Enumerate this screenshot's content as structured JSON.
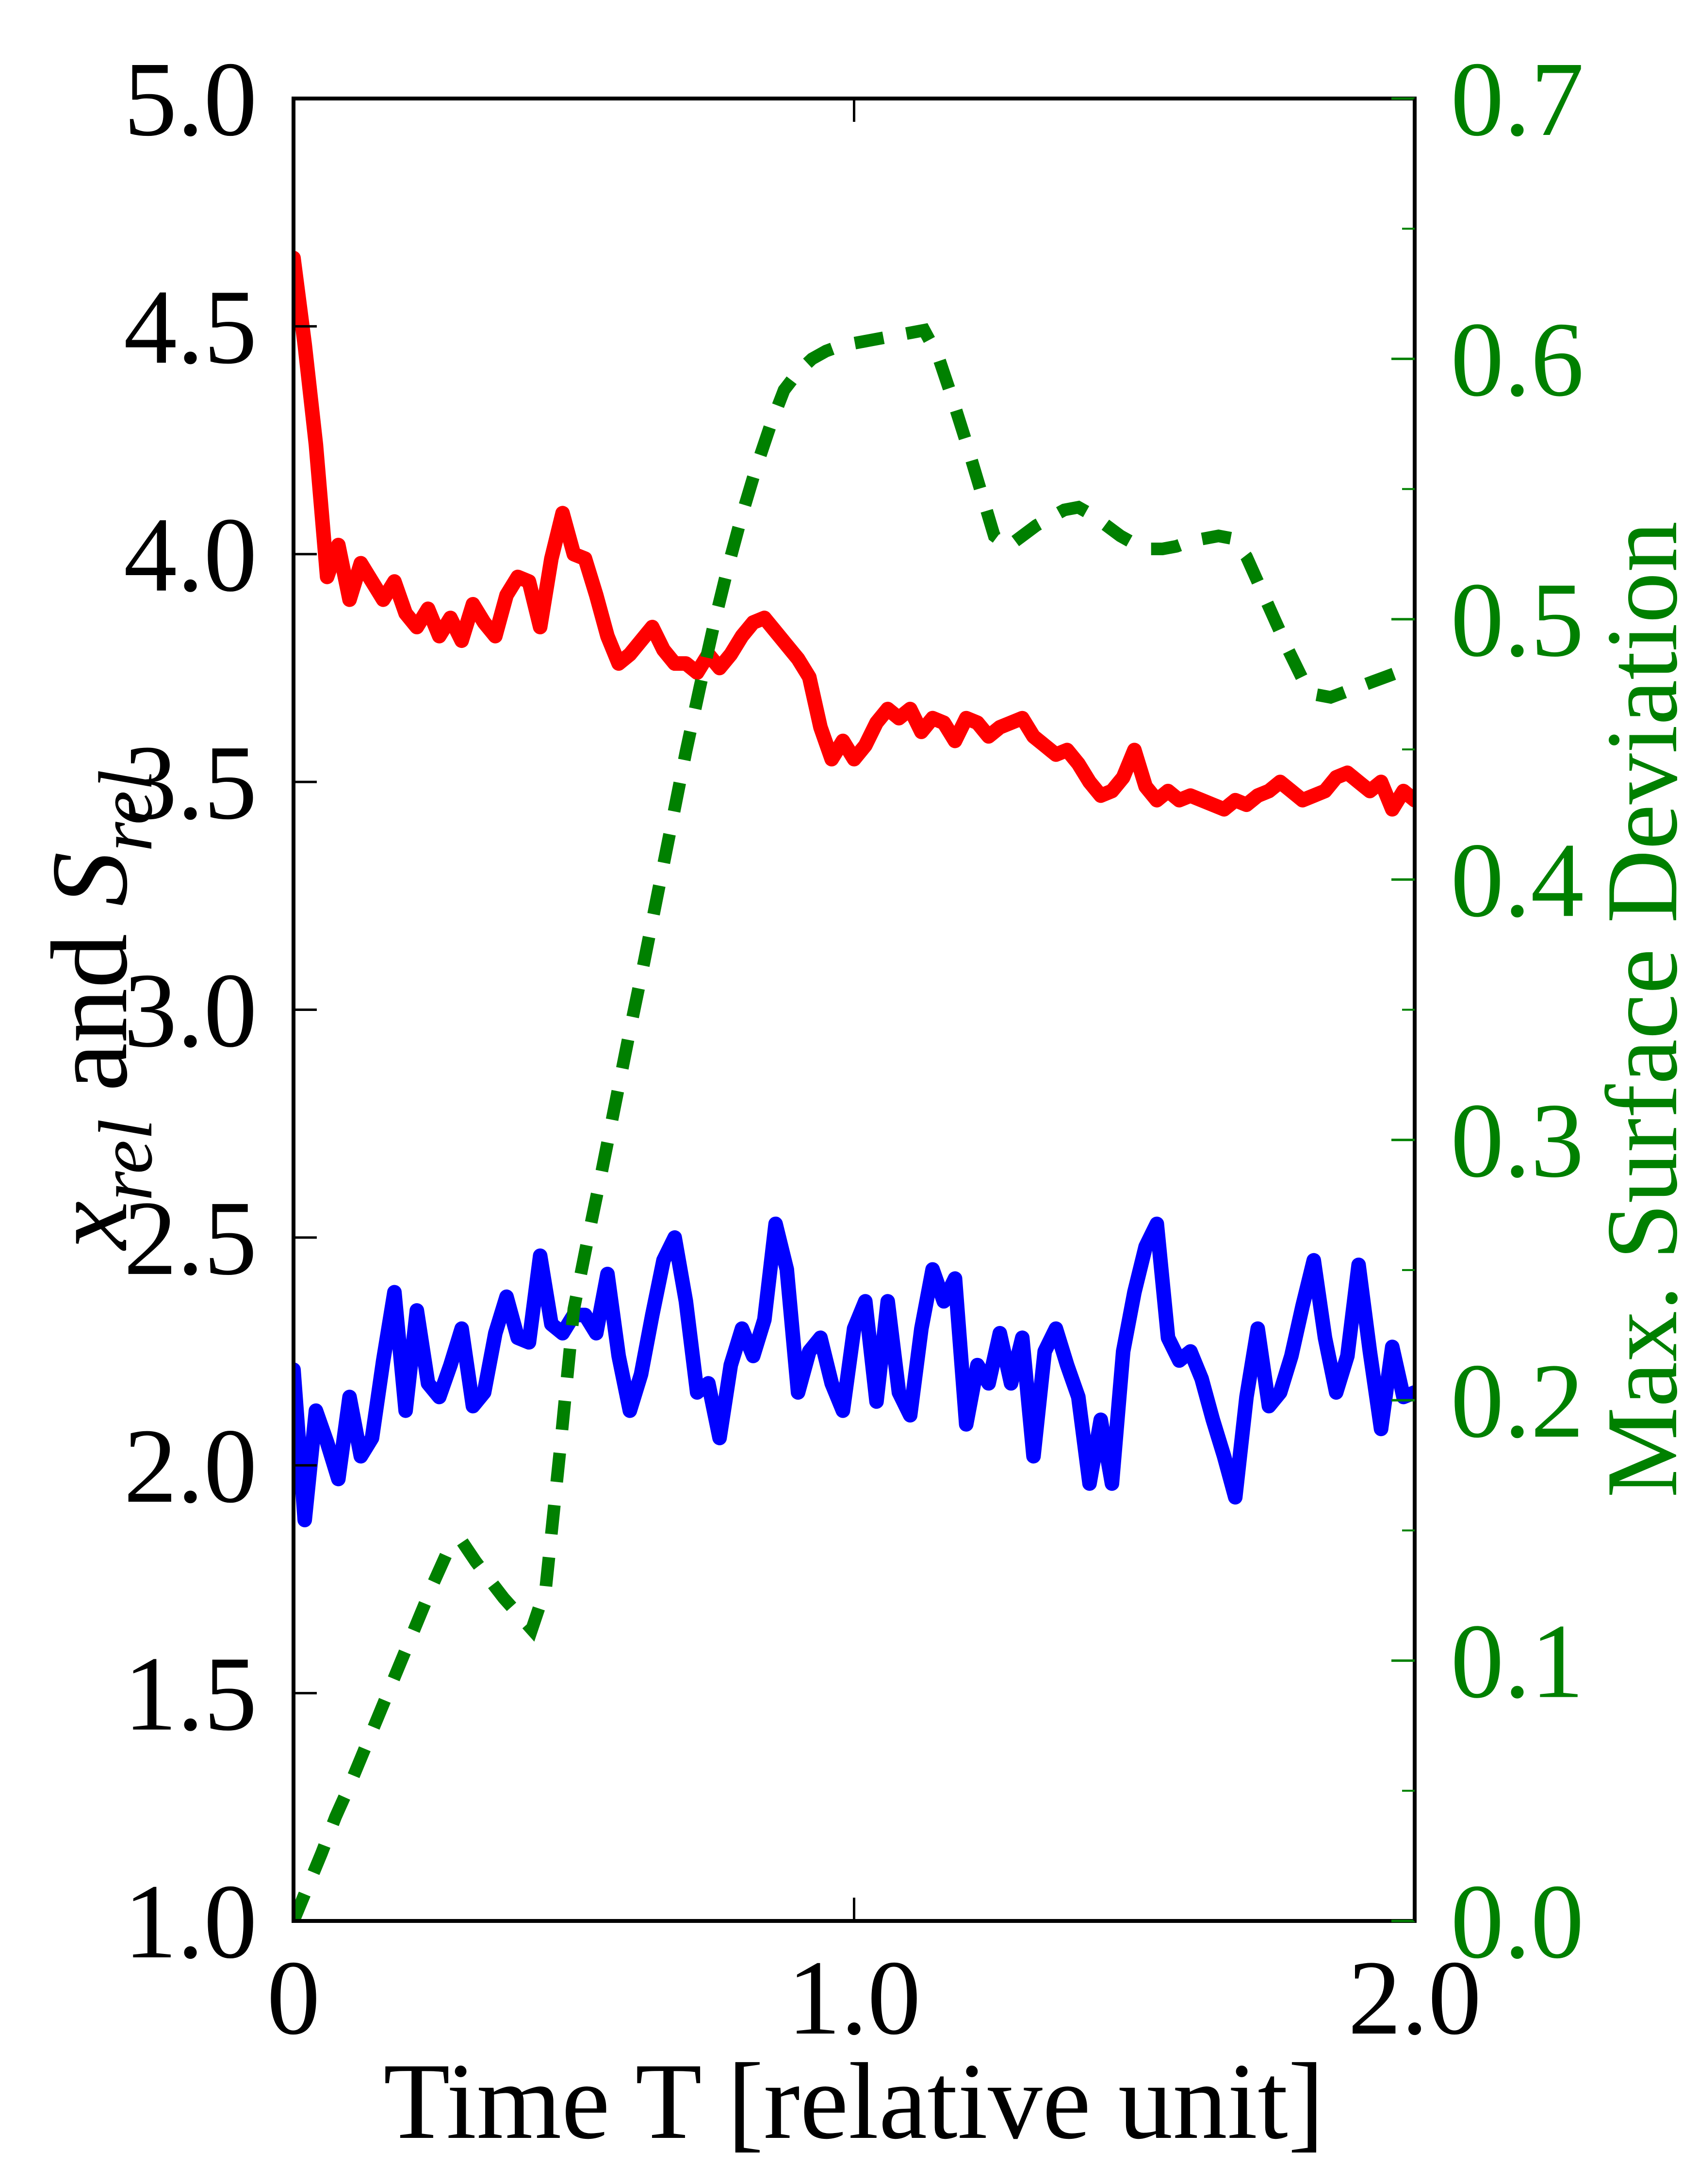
{
  "figure": {
    "xlabel": "Time T [relative unit]",
    "ylabel_left_parts": {
      "var1": "x",
      "sub1": "rel",
      "mid": " and ",
      "var2": "S",
      "sub2": "rel"
    },
    "ylabel_right": "Max. Surface Deviation",
    "colors": {
      "x_rel_line": "#ff0000",
      "s_rel_line": "#0000ff",
      "deviation_line": "#008000",
      "axis": "#000000",
      "background": "#ffffff"
    }
  },
  "chart_data": {
    "type": "line",
    "title": "",
    "xlabel": "Time T [relative unit]",
    "ylabel_left": "x_rel and S_rel",
    "ylabel_right": "Max. Surface Deviation",
    "legend": "none",
    "grid": false,
    "x_axis": {
      "min": 0,
      "max": 2,
      "ticks": [
        {
          "v": 0,
          "label": "0"
        },
        {
          "v": 1,
          "label": "1.0"
        },
        {
          "v": 2,
          "label": "2.0"
        }
      ]
    },
    "y_axis_left": {
      "min": 1.0,
      "max": 5.0,
      "ticks": [
        {
          "v": 5.0,
          "label": "5.0"
        },
        {
          "v": 4.5,
          "label": "4.5"
        },
        {
          "v": 4.0,
          "label": "4.0"
        },
        {
          "v": 3.5,
          "label": "3.5"
        },
        {
          "v": 3.0,
          "label": "3.0"
        },
        {
          "v": 2.5,
          "label": "2.5"
        },
        {
          "v": 2.0,
          "label": "2.0"
        },
        {
          "v": 1.5,
          "label": "1.5"
        },
        {
          "v": 1.0,
          "label": "1.0"
        }
      ]
    },
    "y_axis_right": {
      "min": 0.0,
      "max": 0.7,
      "ticks": [
        {
          "v": 0.7,
          "label": "0.7"
        },
        {
          "v": 0.6,
          "label": "0.6"
        },
        {
          "v": 0.5,
          "label": "0.5"
        },
        {
          "v": 0.4,
          "label": "0.4"
        },
        {
          "v": 0.3,
          "label": "0.3"
        },
        {
          "v": 0.2,
          "label": "0.2"
        },
        {
          "v": 0.1,
          "label": "0.1"
        },
        {
          "v": 0.0,
          "label": "0.0"
        }
      ],
      "minor_ticks": [
        0.05,
        0.15,
        0.25,
        0.35,
        0.45,
        0.55,
        0.65
      ]
    },
    "x_solid": [
      0,
      0.02,
      0.04,
      0.06,
      0.08,
      0.1,
      0.12,
      0.14,
      0.16,
      0.18,
      0.2,
      0.22,
      0.24,
      0.26,
      0.28,
      0.3,
      0.32,
      0.34,
      0.36,
      0.38,
      0.4,
      0.42,
      0.44,
      0.46,
      0.48,
      0.5,
      0.52,
      0.54,
      0.56,
      0.58,
      0.6,
      0.62,
      0.64,
      0.66,
      0.68,
      0.7,
      0.72,
      0.74,
      0.76,
      0.78,
      0.8,
      0.82,
      0.84,
      0.86,
      0.88,
      0.9,
      0.92,
      0.94,
      0.96,
      0.98,
      1.0,
      1.02,
      1.04,
      1.06,
      1.08,
      1.1,
      1.12,
      1.14,
      1.16,
      1.18,
      1.2,
      1.22,
      1.24,
      1.26,
      1.28,
      1.3,
      1.32,
      1.34,
      1.36,
      1.38,
      1.4,
      1.42,
      1.44,
      1.46,
      1.48,
      1.5,
      1.52,
      1.54,
      1.56,
      1.58,
      1.6,
      1.62,
      1.64,
      1.66,
      1.68,
      1.7,
      1.72,
      1.74,
      1.76,
      1.78,
      1.8,
      1.82,
      1.84,
      1.86,
      1.88,
      1.9,
      1.92,
      1.94,
      1.96,
      1.98,
      2.0
    ],
    "series": [
      {
        "name": "x_rel",
        "color": "#ff0000",
        "style": "solid",
        "axis": "left",
        "y": [
          4.65,
          4.46,
          4.24,
          3.95,
          4.02,
          3.9,
          3.98,
          3.94,
          3.9,
          3.94,
          3.87,
          3.84,
          3.88,
          3.82,
          3.86,
          3.81,
          3.89,
          3.85,
          3.82,
          3.91,
          3.95,
          3.94,
          3.84,
          3.99,
          4.09,
          4.0,
          3.99,
          3.91,
          3.82,
          3.76,
          3.78,
          3.81,
          3.84,
          3.79,
          3.76,
          3.76,
          3.74,
          3.78,
          3.75,
          3.78,
          3.82,
          3.85,
          3.86,
          3.83,
          3.8,
          3.77,
          3.73,
          3.62,
          3.55,
          3.59,
          3.55,
          3.58,
          3.63,
          3.66,
          3.64,
          3.66,
          3.61,
          3.64,
          3.63,
          3.59,
          3.64,
          3.63,
          3.6,
          3.62,
          3.63,
          3.64,
          3.6,
          3.58,
          3.56,
          3.57,
          3.54,
          3.5,
          3.47,
          3.48,
          3.51,
          3.57,
          3.49,
          3.46,
          3.48,
          3.46,
          3.47,
          3.46,
          3.45,
          3.44,
          3.46,
          3.45,
          3.47,
          3.48,
          3.5,
          3.48,
          3.46,
          3.47,
          3.48,
          3.51,
          3.52,
          3.5,
          3.48,
          3.5,
          3.44,
          3.48,
          3.46
        ]
      },
      {
        "name": "S_rel",
        "color": "#0000ff",
        "style": "solid",
        "axis": "left",
        "y": [
          2.21,
          1.88,
          2.12,
          2.05,
          1.97,
          2.15,
          2.02,
          2.06,
          2.23,
          2.38,
          2.12,
          2.34,
          2.18,
          2.15,
          2.22,
          2.3,
          2.13,
          2.16,
          2.29,
          2.37,
          2.28,
          2.27,
          2.46,
          2.31,
          2.29,
          2.33,
          2.33,
          2.29,
          2.42,
          2.24,
          2.12,
          2.2,
          2.33,
          2.45,
          2.5,
          2.36,
          2.16,
          2.18,
          2.06,
          2.22,
          2.3,
          2.24,
          2.32,
          2.53,
          2.43,
          2.16,
          2.25,
          2.28,
          2.18,
          2.12,
          2.3,
          2.36,
          2.14,
          2.36,
          2.16,
          2.11,
          2.3,
          2.43,
          2.36,
          2.41,
          2.09,
          2.22,
          2.18,
          2.29,
          2.18,
          2.28,
          2.02,
          2.25,
          2.3,
          2.22,
          2.15,
          1.96,
          2.1,
          1.96,
          2.25,
          2.38,
          2.48,
          2.53,
          2.28,
          2.23,
          2.25,
          2.19,
          2.1,
          2.02,
          1.93,
          2.15,
          2.3,
          2.13,
          2.16,
          2.24,
          2.35,
          2.45,
          2.28,
          2.16,
          2.24,
          2.44,
          2.25,
          2.08,
          2.26,
          2.15,
          2.16
        ]
      },
      {
        "name": "Max. Surface Deviation",
        "color": "#008000",
        "style": "dotted",
        "axis": "right",
        "x": [
          0,
          0.025,
          0.05,
          0.075,
          0.1,
          0.125,
          0.15,
          0.175,
          0.2,
          0.225,
          0.25,
          0.275,
          0.3,
          0.325,
          0.35,
          0.375,
          0.4,
          0.425,
          0.45,
          0.475,
          0.5,
          0.525,
          0.55,
          0.575,
          0.6,
          0.625,
          0.65,
          0.675,
          0.7,
          0.725,
          0.75,
          0.775,
          0.8,
          0.825,
          0.85,
          0.875,
          0.9,
          0.925,
          0.95,
          0.975,
          1.0,
          1.025,
          1.05,
          1.075,
          1.1,
          1.125,
          1.15,
          1.175,
          1.2,
          1.225,
          1.25,
          1.275,
          1.3,
          1.325,
          1.35,
          1.375,
          1.4,
          1.425,
          1.45,
          1.475,
          1.5,
          1.525,
          1.55,
          1.575,
          1.6,
          1.625,
          1.65,
          1.675,
          1.7,
          1.725,
          1.75,
          1.775,
          1.8,
          1.825,
          1.85,
          1.875,
          1.9,
          1.925,
          1.95,
          1.975,
          2.0
        ],
        "y": [
          0.0,
          0.013,
          0.026,
          0.04,
          0.052,
          0.065,
          0.078,
          0.091,
          0.104,
          0.117,
          0.13,
          0.142,
          0.146,
          0.138,
          0.131,
          0.124,
          0.118,
          0.112,
          0.128,
          0.18,
          0.235,
          0.262,
          0.288,
          0.315,
          0.342,
          0.368,
          0.395,
          0.422,
          0.449,
          0.474,
          0.498,
          0.52,
          0.54,
          0.558,
          0.574,
          0.588,
          0.595,
          0.6,
          0.603,
          0.605,
          0.606,
          0.607,
          0.608,
          0.609,
          0.61,
          0.611,
          0.601,
          0.585,
          0.568,
          0.55,
          0.532,
          0.528,
          0.532,
          0.536,
          0.539,
          0.542,
          0.543,
          0.54,
          0.536,
          0.532,
          0.529,
          0.527,
          0.527,
          0.528,
          0.53,
          0.531,
          0.532,
          0.531,
          0.524,
          0.512,
          0.5,
          0.488,
          0.477,
          0.471,
          0.47,
          0.472,
          0.474,
          0.476,
          0.478,
          0.48,
          0.481
        ]
      }
    ]
  }
}
